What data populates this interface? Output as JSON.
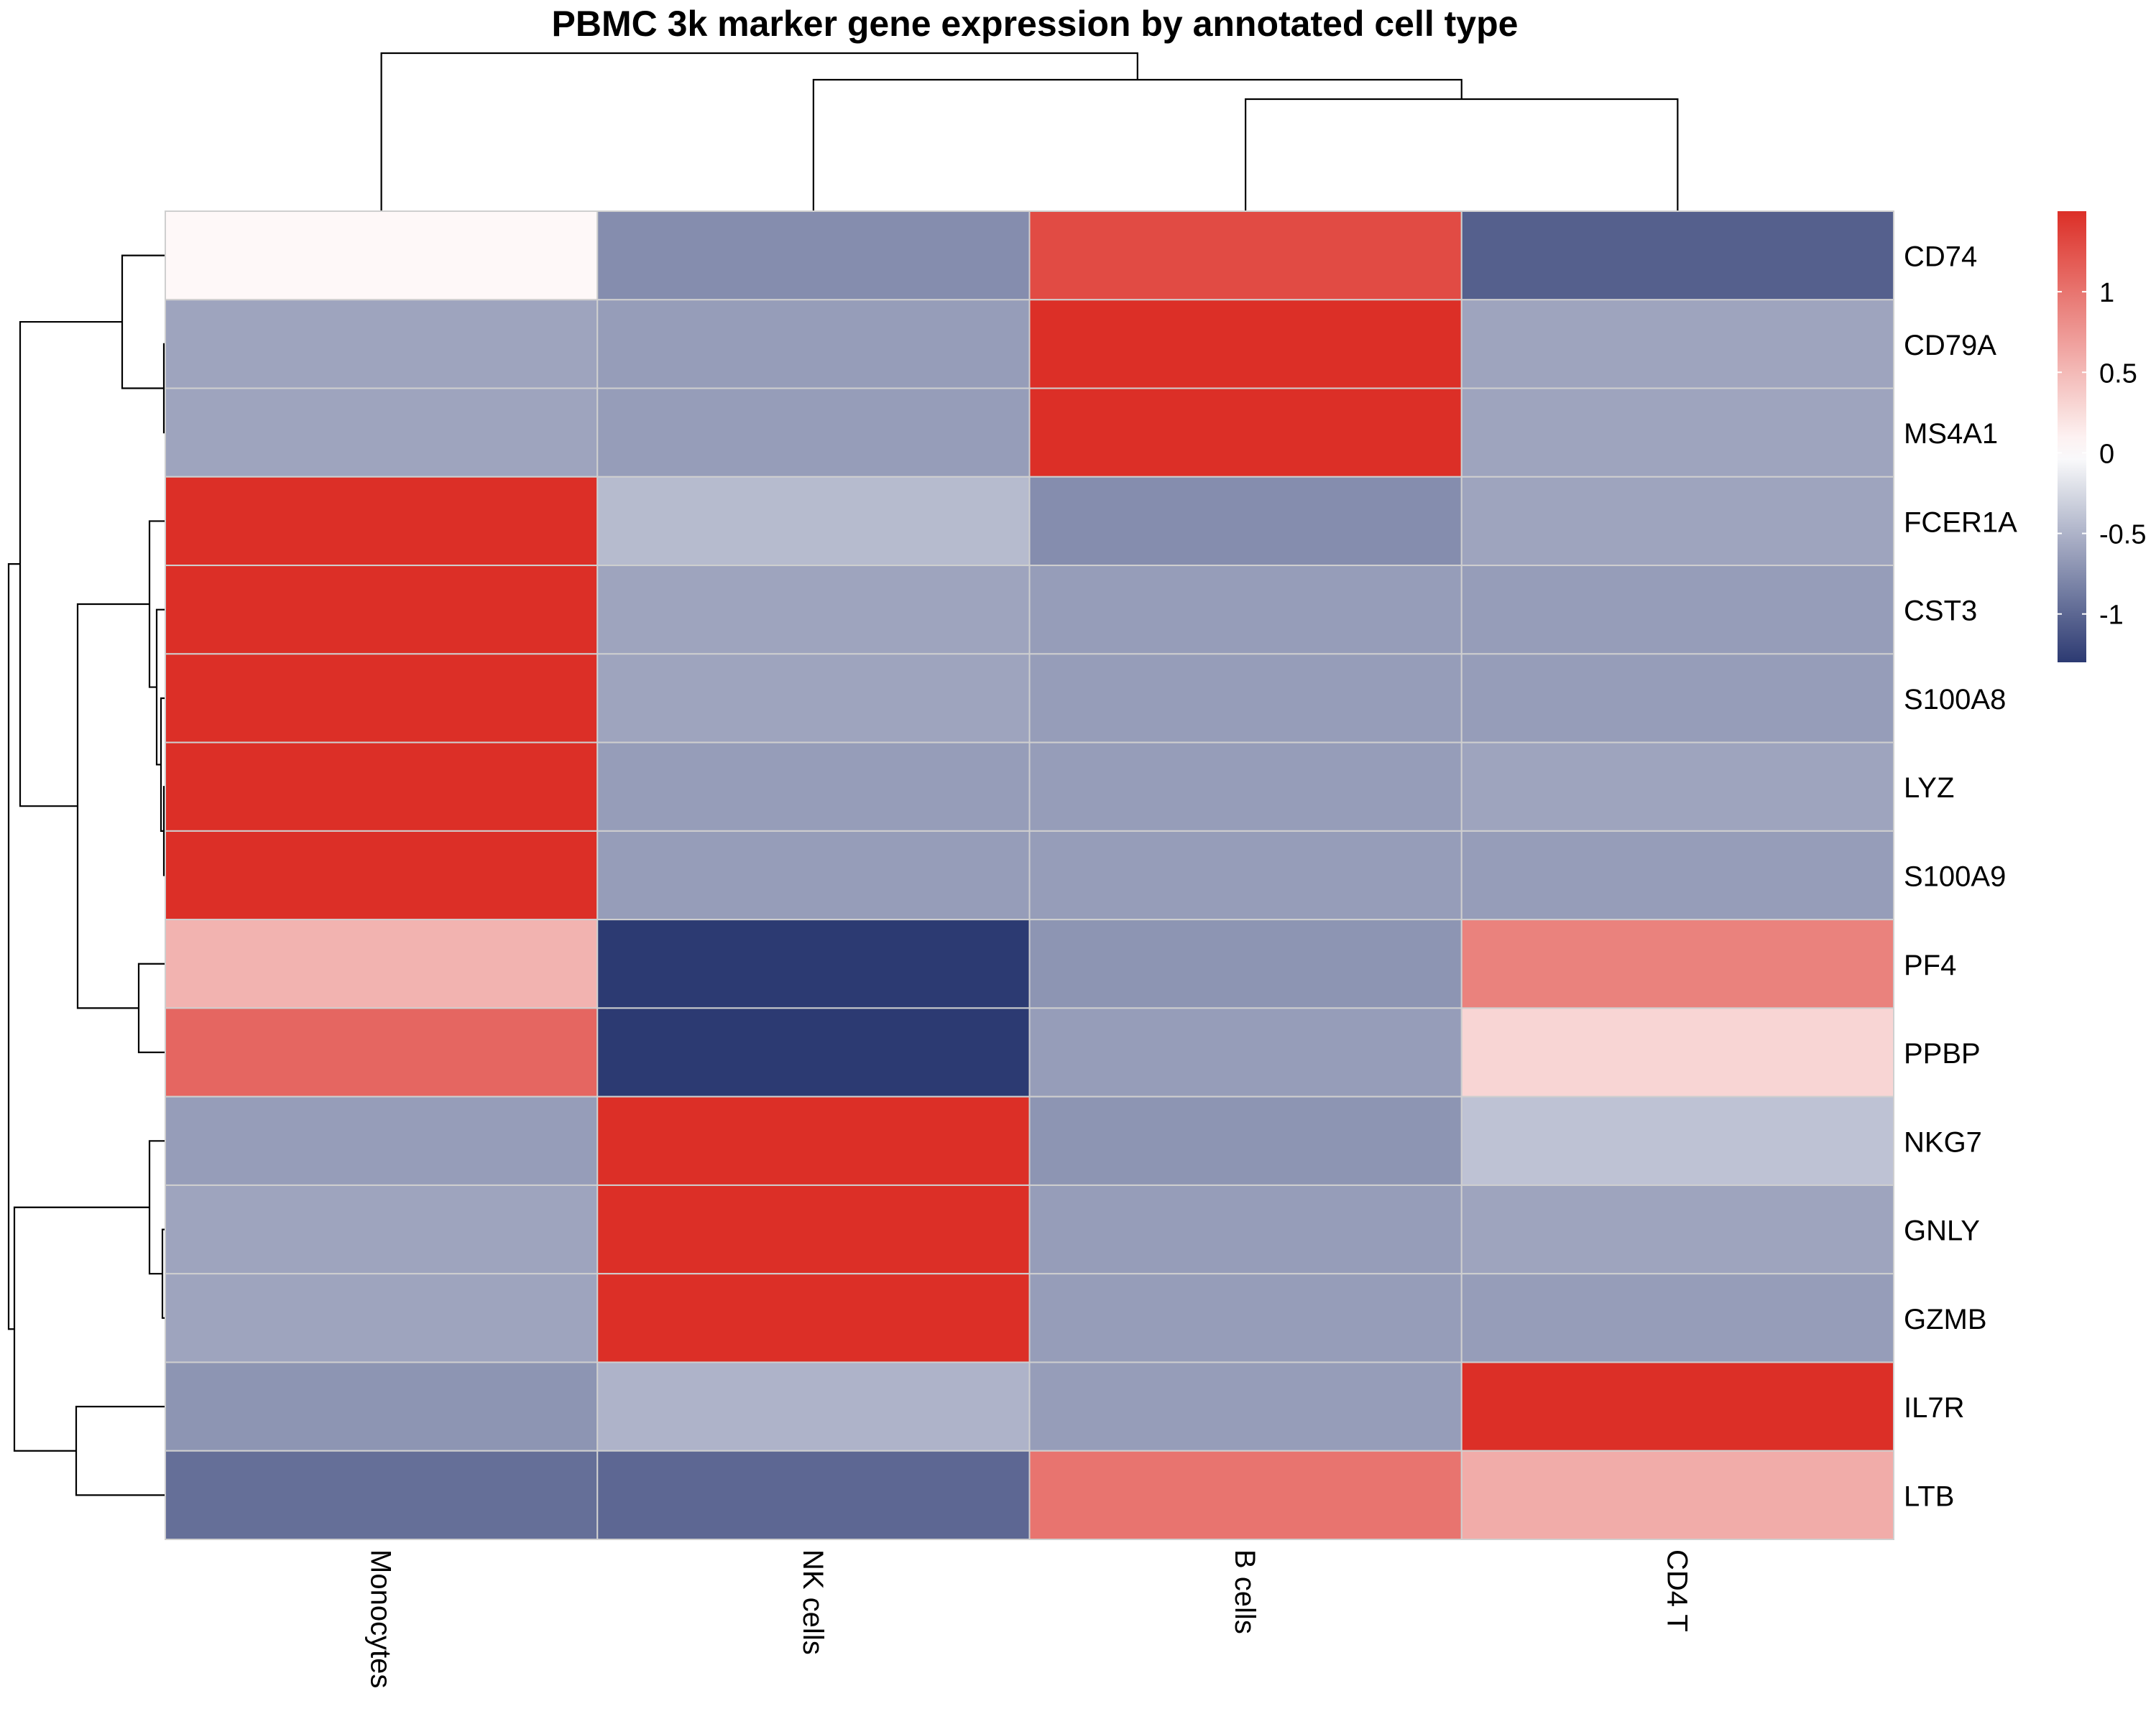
{
  "chart_data": {
    "type": "heatmap",
    "title": "PBMC 3k marker gene expression by annotated cell type",
    "columns": [
      "Monocytes",
      "NK cells",
      "B cells",
      "CD4 T"
    ],
    "rows": [
      "CD74",
      "CD79A",
      "MS4A1",
      "FCER1A",
      "CST3",
      "S100A8",
      "LYZ",
      "S100A9",
      "PF4",
      "PPBP",
      "NKG7",
      "GNLY",
      "GZMB",
      "IL7R",
      "LTB"
    ],
    "values": [
      [
        0.05,
        -0.75,
        1.3,
        -1.05
      ],
      [
        -0.6,
        -0.65,
        1.5,
        -0.6
      ],
      [
        -0.6,
        -0.65,
        1.5,
        -0.6
      ],
      [
        1.5,
        -0.45,
        -0.75,
        -0.6
      ],
      [
        1.5,
        -0.6,
        -0.65,
        -0.65
      ],
      [
        1.5,
        -0.6,
        -0.65,
        -0.65
      ],
      [
        1.5,
        -0.65,
        -0.65,
        -0.6
      ],
      [
        1.5,
        -0.65,
        -0.65,
        -0.65
      ],
      [
        0.55,
        -1.3,
        -0.7,
        0.9
      ],
      [
        1.1,
        -1.3,
        -0.65,
        0.3
      ],
      [
        -0.65,
        1.5,
        -0.7,
        -0.4
      ],
      [
        -0.6,
        1.5,
        -0.65,
        -0.6
      ],
      [
        -0.6,
        1.5,
        -0.65,
        -0.65
      ],
      [
        -0.7,
        -0.5,
        -0.65,
        1.5
      ],
      [
        -0.95,
        -1.0,
        1.0,
        0.6
      ]
    ],
    "color_scale": {
      "min": -1.3,
      "max": 1.5,
      "colors": [
        "#2c3a72",
        "#ffffff",
        "#dc2f27"
      ],
      "ticks": [
        -1,
        -0.5,
        0,
        0.5,
        1
      ]
    },
    "legend_position": "right",
    "cell_border_color": "#cfcfcf",
    "dendrograms": "rows and columns"
  }
}
